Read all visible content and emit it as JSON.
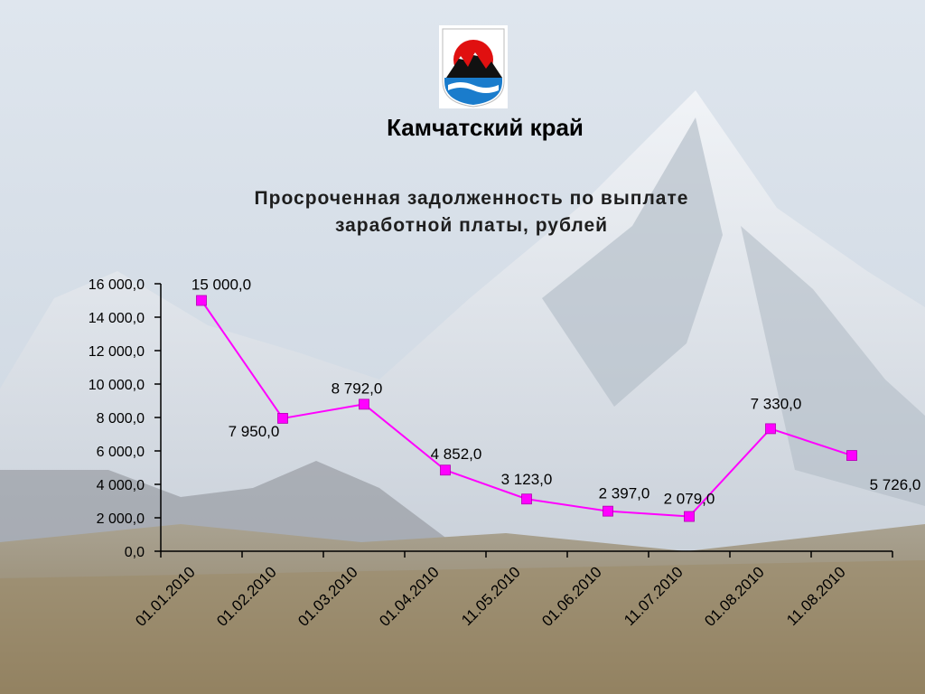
{
  "region": {
    "name": "Камчатский край"
  },
  "chart_data": {
    "type": "line",
    "title": "Просроченная задолженность по выплате\nзаработной платы, рублей",
    "categories": [
      "01.01.2010",
      "01.02.2010",
      "01.03.2010",
      "01.04.2010",
      "11.05.2010",
      "01.06.2010",
      "11.07.2010",
      "01.08.2010",
      "11.08.2010"
    ],
    "values": [
      15000,
      7950,
      8792,
      4852,
      3123,
      2397,
      2079,
      7330,
      5726
    ],
    "data_labels": [
      "15 000,0",
      "7 950,0",
      "8 792,0",
      "4 852,0",
      "3 123,0",
      "2 397,0",
      "2 079,0",
      "7 330,0",
      "5 726,0"
    ],
    "y_ticks": [
      0,
      2000,
      4000,
      6000,
      8000,
      10000,
      12000,
      14000,
      16000
    ],
    "y_tick_labels": [
      "0,0",
      "2 000,0",
      "4 000,0",
      "6 000,0",
      "8 000,0",
      "10 000,0",
      "12 000,0",
      "14 000,0",
      "16 000,0"
    ],
    "ylim": [
      0,
      16000
    ],
    "line_color": "#ff00ff",
    "marker_color": "#ff00ff",
    "grid": false,
    "legend": "none"
  }
}
